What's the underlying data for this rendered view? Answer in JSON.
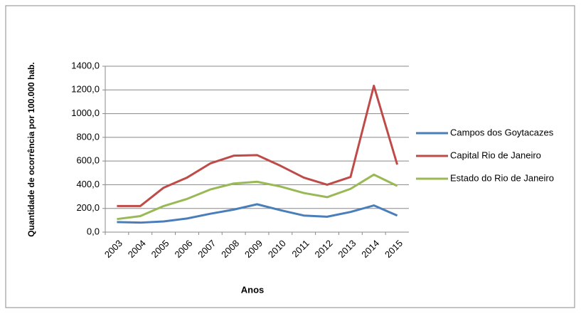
{
  "chart_data": {
    "type": "line",
    "x_label": "Anos",
    "y_label": "Quantidade de ocorrência por 100.000 hab.",
    "categories": [
      "2003",
      "2004",
      "2005",
      "2006",
      "2007",
      "2008",
      "2009",
      "2010",
      "2011",
      "2012",
      "2013",
      "2014",
      "2015"
    ],
    "series": [
      {
        "name": "Campos dos Goytacazes",
        "color": "#4a7ebb",
        "values": [
          85,
          80,
          90,
          115,
          155,
          190,
          235,
          185,
          140,
          130,
          170,
          225,
          140
        ]
      },
      {
        "name": "Capital Rio de Janeiro",
        "color": "#be4b48",
        "values": [
          220,
          220,
          375,
          460,
          580,
          645,
          650,
          560,
          460,
          400,
          465,
          1235,
          570
        ]
      },
      {
        "name": "Estado do Rio de Janeiro",
        "color": "#98b954",
        "values": [
          110,
          135,
          220,
          280,
          360,
          410,
          425,
          385,
          330,
          295,
          365,
          485,
          390
        ]
      }
    ],
    "ylim": [
      0,
      1400
    ],
    "yticks": [
      {
        "value": 0,
        "label": "0,0"
      },
      {
        "value": 200,
        "label": "200,0"
      },
      {
        "value": 400,
        "label": "400,0"
      },
      {
        "value": 600,
        "label": "600,0"
      },
      {
        "value": 800,
        "label": "800,0"
      },
      {
        "value": 1000,
        "label": "1000,0"
      },
      {
        "value": 1200,
        "label": "1200,0"
      },
      {
        "value": 1400,
        "label": "1400,0"
      }
    ],
    "grid": true,
    "legend": "right"
  }
}
